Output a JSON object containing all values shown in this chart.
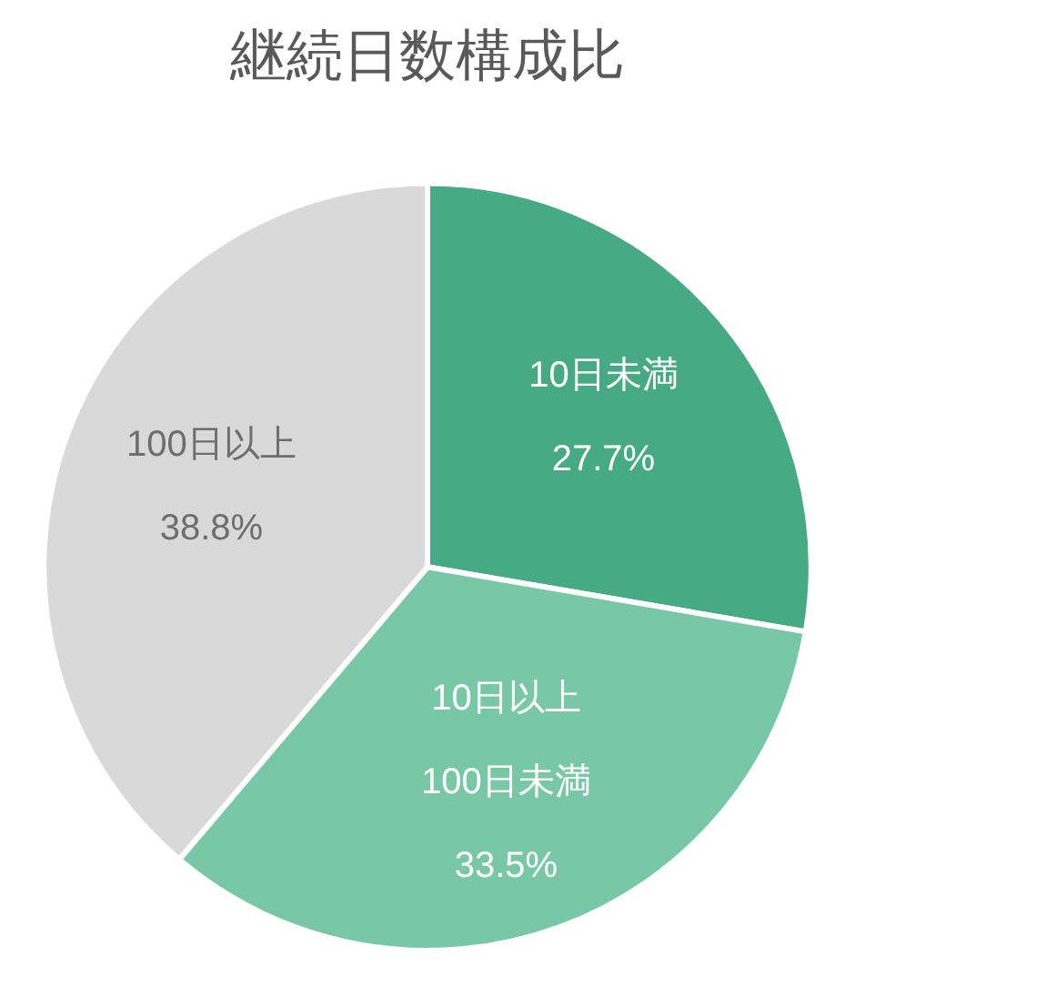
{
  "chart_data": {
    "type": "pie",
    "title": "継続日数構成比",
    "categories": [
      "10日未満",
      "10日以上\n100日未満",
      "100日以上"
    ],
    "values": [
      27.7,
      33.5,
      38.8
    ],
    "colors": [
      "#46aa84",
      "#78c8a8",
      "#d9d9d9"
    ],
    "value_labels": [
      "27.7%",
      "33.5%",
      "38.8%"
    ],
    "legend": false
  }
}
